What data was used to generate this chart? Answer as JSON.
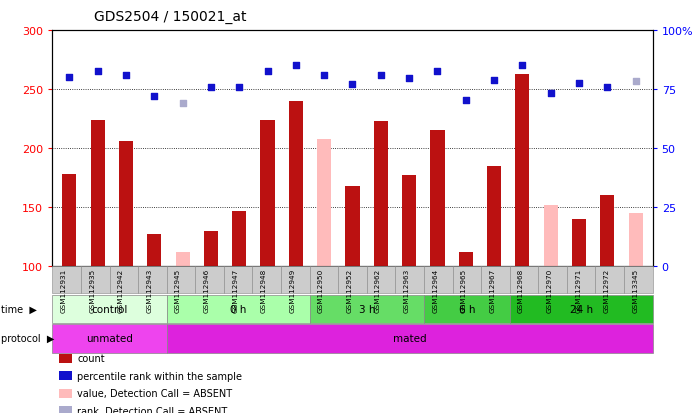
{
  "title": "GDS2504 / 150021_at",
  "samples": [
    "GSM112931",
    "GSM112935",
    "GSM112942",
    "GSM112943",
    "GSM112945",
    "GSM112946",
    "GSM112947",
    "GSM112948",
    "GSM112949",
    "GSM112950",
    "GSM112952",
    "GSM112962",
    "GSM112963",
    "GSM112964",
    "GSM112965",
    "GSM112967",
    "GSM112968",
    "GSM112970",
    "GSM112971",
    "GSM112972",
    "GSM113345"
  ],
  "bar_values": [
    178,
    224,
    206,
    127,
    112,
    130,
    147,
    224,
    240,
    208,
    168,
    223,
    177,
    215,
    112,
    185,
    263,
    152,
    140,
    160,
    145
  ],
  "bar_absent": [
    false,
    false,
    false,
    false,
    true,
    false,
    false,
    false,
    false,
    true,
    false,
    false,
    false,
    false,
    false,
    false,
    false,
    true,
    false,
    false,
    true
  ],
  "dot_values": [
    260,
    265,
    262,
    244,
    238,
    252,
    252,
    265,
    270,
    262,
    254,
    262,
    259,
    265,
    241,
    258,
    270,
    247,
    255,
    252,
    257
  ],
  "dot_absent": [
    false,
    false,
    false,
    false,
    true,
    false,
    false,
    false,
    false,
    false,
    false,
    false,
    false,
    false,
    false,
    false,
    false,
    false,
    false,
    false,
    true
  ],
  "ylim_left": [
    100,
    300
  ],
  "ylim_right": [
    0,
    100
  ],
  "yticks_left": [
    100,
    150,
    200,
    250,
    300
  ],
  "yticks_right": [
    0,
    25,
    50,
    75,
    100
  ],
  "bar_color": "#bb1111",
  "bar_absent_color": "#ffbbbb",
  "dot_color": "#1111cc",
  "dot_absent_color": "#aaaacc",
  "groups": [
    {
      "label": "control",
      "start": 0,
      "end": 4,
      "color": "#ddffdd"
    },
    {
      "label": "0 h",
      "start": 4,
      "end": 9,
      "color": "#aaffaa"
    },
    {
      "label": "3 h",
      "start": 9,
      "end": 13,
      "color": "#66dd66"
    },
    {
      "label": "6 h",
      "start": 13,
      "end": 16,
      "color": "#44cc44"
    },
    {
      "label": "24 h",
      "start": 16,
      "end": 21,
      "color": "#22bb22"
    }
  ],
  "protocols": [
    {
      "label": "unmated",
      "start": 0,
      "end": 4,
      "color": "#ee44ee"
    },
    {
      "label": "mated",
      "start": 4,
      "end": 21,
      "color": "#dd22dd"
    }
  ],
  "legend_items": [
    {
      "label": "count",
      "color": "#bb1111"
    },
    {
      "label": "percentile rank within the sample",
      "color": "#1111cc"
    },
    {
      "label": "value, Detection Call = ABSENT",
      "color": "#ffbbbb"
    },
    {
      "label": "rank, Detection Call = ABSENT",
      "color": "#aaaacc"
    }
  ]
}
